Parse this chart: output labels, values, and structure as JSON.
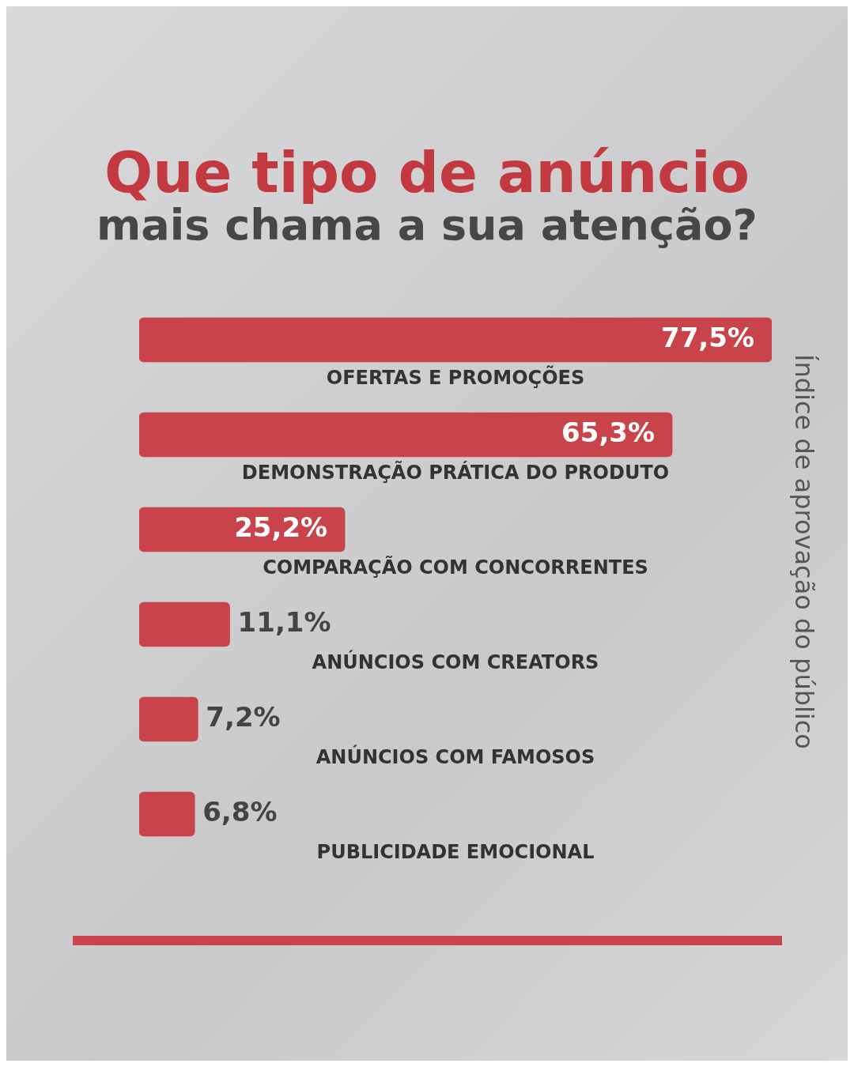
{
  "chart_data": {
    "type": "bar",
    "orientation": "horizontal",
    "title": "Que tipo de anúncio",
    "subtitle": "mais chama a sua atenção?",
    "ylabel": "Índice de aprovação do público",
    "categories": [
      "OFERTAS E PROMOÇÕES",
      "DEMONSTRAÇÃO PRÁTICA DO PRODUTO",
      "COMPARAÇÃO COM CONCORRENTES",
      "ANÚNCIOS COM CREATORS",
      "ANÚNCIOS COM FAMOSOS",
      "PUBLICIDADE EMOCIONAL"
    ],
    "values": [
      77.5,
      65.3,
      25.2,
      11.1,
      7.2,
      6.8
    ],
    "value_labels": [
      "77,5%",
      "65,3%",
      "25,2%",
      "11,1%",
      "7,2%",
      "6,8%"
    ],
    "color": "#c9444a",
    "legend": false
  }
}
